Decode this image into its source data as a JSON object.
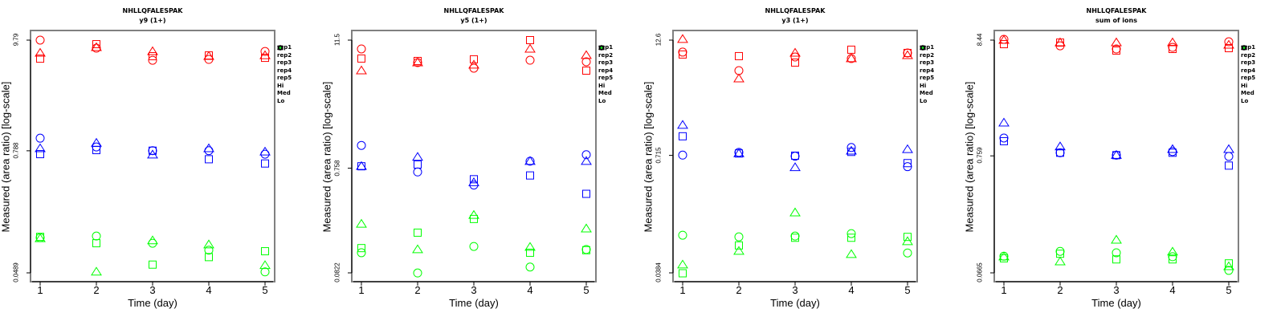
{
  "chart_data": [
    {
      "type": "scatter",
      "title": "NHLLQFALESPAK",
      "subtitle": "y9 (1+)",
      "xlabel": "Time (day)",
      "ylabel": "Measured (area ratio) [log-scale]",
      "yscale": "log",
      "x_ticks": [
        "1",
        "2",
        "3",
        "4",
        "5"
      ],
      "xlim": [
        1,
        5
      ],
      "y_ticks": [
        "0.0489",
        "0.788",
        "9.79"
      ],
      "y_tick_values": [
        0.0489,
        0.788,
        9.79
      ],
      "ylim": [
        0.0489,
        9.79
      ],
      "legend": [
        "rep1",
        "rep2",
        "rep3",
        "rep4",
        "rep5",
        "Hi",
        "Med",
        "Lo"
      ],
      "legend_position": "right",
      "series": [
        {
          "name": "Hi rep1",
          "group": "Hi",
          "rep": "rep1",
          "x": [
            1,
            2,
            3,
            4,
            5
          ],
          "values": [
            9.79,
            8.15,
            6.19,
            6.31,
            7.57
          ]
        },
        {
          "name": "Hi rep2",
          "group": "Hi",
          "rep": "rep2",
          "x": [
            1,
            2,
            3,
            4,
            5
          ],
          "values": [
            6.42,
            8.93,
            6.79,
            6.91,
            6.54
          ]
        },
        {
          "name": "Hi rep3",
          "group": "Hi",
          "rep": "rep3",
          "x": [
            1,
            2,
            3,
            4,
            5
          ],
          "values": [
            7.3,
            8.3,
            7.57,
            6.79,
            6.91
          ]
        },
        {
          "name": "Med rep1",
          "group": "Med",
          "rep": "rep1",
          "x": [
            1,
            2,
            3,
            4,
            5
          ],
          "values": [
            1.05,
            0.86,
            0.79,
            0.79,
            0.73
          ]
        },
        {
          "name": "Med rep2",
          "group": "Med",
          "rep": "rep2",
          "x": [
            1,
            2,
            3,
            4,
            5
          ],
          "values": [
            0.73,
            0.8,
            0.79,
            0.65,
            0.59
          ]
        },
        {
          "name": "Med rep3",
          "group": "Med",
          "rep": "rep3",
          "x": [
            1,
            2,
            3,
            4,
            5
          ],
          "values": [
            0.83,
            0.94,
            0.72,
            0.83,
            0.77
          ]
        },
        {
          "name": "Lo rep1",
          "group": "Lo",
          "rep": "rep1",
          "x": [
            1,
            2,
            3,
            4,
            5
          ],
          "values": [
            0.109,
            0.113,
            0.096,
            0.082,
            0.05
          ]
        },
        {
          "name": "Lo rep2",
          "group": "Lo",
          "rep": "rep2",
          "x": [
            1,
            2,
            3,
            4,
            5
          ],
          "values": [
            0.111,
            0.096,
            0.059,
            0.07,
            0.08
          ]
        },
        {
          "name": "Lo rep3",
          "group": "Lo",
          "rep": "rep3",
          "x": [
            1,
            2,
            3,
            4,
            5
          ],
          "values": [
            0.107,
            0.05,
            0.102,
            0.093,
            0.058
          ]
        }
      ]
    },
    {
      "type": "scatter",
      "title": "NHLLQFALESPAK",
      "subtitle": "y5 (1+)",
      "xlabel": "Time (day)",
      "ylabel": "Measured (area ratio) [log-scale]",
      "yscale": "log",
      "x_ticks": [
        "1",
        "2",
        "3",
        "4",
        "5"
      ],
      "xlim": [
        1,
        5
      ],
      "y_ticks": [
        "0.0822",
        "0.758",
        "11.5"
      ],
      "y_tick_values": [
        0.0822,
        0.758,
        11.5
      ],
      "ylim": [
        0.0822,
        11.5
      ],
      "legend": [
        "rep1",
        "rep2",
        "rep3",
        "rep4",
        "rep5",
        "Hi",
        "Med",
        "Lo"
      ],
      "legend_position": "right",
      "series": [
        {
          "name": "Hi rep1",
          "group": "Hi",
          "rep": "rep1",
          "x": [
            1,
            2,
            3,
            4,
            5
          ],
          "values": [
            9.54,
            7.14,
            6.34,
            7.51,
            7.26
          ]
        },
        {
          "name": "Hi rep2",
          "group": "Hi",
          "rep": "rep2",
          "x": [
            1,
            2,
            3,
            4,
            5
          ],
          "values": [
            7.78,
            7.39,
            7.65,
            11.5,
            6.02
          ]
        },
        {
          "name": "Hi rep3",
          "group": "Hi",
          "rep": "rep3",
          "x": [
            1,
            2,
            3,
            4,
            5
          ],
          "values": [
            6.02,
            7.14,
            6.8,
            9.54,
            8.33
          ]
        },
        {
          "name": "Med rep1",
          "group": "Med",
          "rep": "rep1",
          "x": [
            1,
            2,
            3,
            4,
            5
          ],
          "values": [
            1.23,
            0.7,
            0.53,
            0.88,
            1.01
          ]
        },
        {
          "name": "Med rep2",
          "group": "Med",
          "rep": "rep2",
          "x": [
            1,
            2,
            3,
            4,
            5
          ],
          "values": [
            0.79,
            0.82,
            0.6,
            0.65,
            0.44
          ]
        },
        {
          "name": "Med rep3",
          "group": "Med",
          "rep": "rep3",
          "x": [
            1,
            2,
            3,
            4,
            5
          ],
          "values": [
            0.79,
            0.96,
            0.56,
            0.88,
            0.88
          ]
        },
        {
          "name": "Lo rep1",
          "group": "Lo",
          "rep": "rep1",
          "x": [
            1,
            2,
            3,
            4,
            5
          ],
          "values": [
            0.126,
            0.082,
            0.144,
            0.093,
            0.135
          ]
        },
        {
          "name": "Lo rep2",
          "group": "Lo",
          "rep": "rep2",
          "x": [
            1,
            2,
            3,
            4,
            5
          ],
          "values": [
            0.139,
            0.193,
            0.258,
            0.126,
            0.133
          ]
        },
        {
          "name": "Lo rep3",
          "group": "Lo",
          "rep": "rep3",
          "x": [
            1,
            2,
            3,
            4,
            5
          ],
          "values": [
            0.232,
            0.135,
            0.28,
            0.142,
            0.21
          ]
        }
      ]
    },
    {
      "type": "scatter",
      "title": "NHLLQFALESPAK",
      "subtitle": "y3 (1+)",
      "xlabel": "Time (day)",
      "ylabel": "Measured (area ratio) [log-scale]",
      "yscale": "log",
      "x_ticks": [
        "1",
        "2",
        "3",
        "4",
        "5"
      ],
      "xlim": [
        1,
        5
      ],
      "y_ticks": [
        "0.0384",
        "0.715",
        "12.6"
      ],
      "y_tick_values": [
        0.0384,
        0.715,
        12.6
      ],
      "ylim": [
        0.0384,
        12.6
      ],
      "legend": [
        "rep1",
        "rep2",
        "rep3",
        "rep4",
        "rep5",
        "Hi",
        "Med",
        "Lo"
      ],
      "legend_position": "right",
      "series": [
        {
          "name": "Hi rep1",
          "group": "Hi",
          "rep": "rep1",
          "x": [
            1,
            2,
            3,
            4,
            5
          ],
          "values": [
            9.35,
            5.9,
            8.29,
            7.97,
            9.16
          ]
        },
        {
          "name": "Hi rep2",
          "group": "Hi",
          "rep": "rep2",
          "x": [
            1,
            2,
            3,
            4,
            5
          ],
          "values": [
            8.81,
            8.46,
            7.21,
            9.93,
            9.16
          ]
        },
        {
          "name": "Hi rep3",
          "group": "Hi",
          "rep": "rep3",
          "x": [
            1,
            2,
            3,
            4,
            5
          ],
          "values": [
            12.9,
            4.83,
            9.16,
            7.97,
            8.63
          ]
        },
        {
          "name": "Med rep1",
          "group": "Med",
          "rep": "rep1",
          "x": [
            1,
            2,
            3,
            4,
            5
          ],
          "values": [
            0.72,
            0.77,
            0.7,
            0.87,
            0.54
          ]
        },
        {
          "name": "Med rep2",
          "group": "Med",
          "rep": "rep2",
          "x": [
            1,
            2,
            3,
            4,
            5
          ],
          "values": [
            1.15,
            0.75,
            0.71,
            0.78,
            0.59
          ]
        },
        {
          "name": "Med rep3",
          "group": "Med",
          "rep": "rep3",
          "x": [
            1,
            2,
            3,
            4,
            5
          ],
          "values": [
            1.52,
            0.75,
            0.53,
            0.8,
            0.83
          ]
        },
        {
          "name": "Lo rep1",
          "group": "Lo",
          "rep": "rep1",
          "x": [
            1,
            2,
            3,
            4,
            5
          ],
          "values": [
            0.098,
            0.094,
            0.096,
            0.102,
            0.063
          ]
        },
        {
          "name": "Lo rep2",
          "group": "Lo",
          "rep": "rep2",
          "x": [
            1,
            2,
            3,
            4,
            5
          ],
          "values": [
            0.038,
            0.076,
            0.092,
            0.092,
            0.094
          ]
        },
        {
          "name": "Lo rep3",
          "group": "Lo",
          "rep": "rep3",
          "x": [
            1,
            2,
            3,
            4,
            5
          ],
          "values": [
            0.047,
            0.066,
            0.172,
            0.061,
            0.084
          ]
        }
      ]
    },
    {
      "type": "scatter",
      "title": "NHLLQFALESPAK",
      "subtitle": "sum of ions",
      "xlabel": "Time (day)",
      "ylabel": "Measured (area ratio) [log-scale]",
      "yscale": "log",
      "x_ticks": [
        "1",
        "2",
        "3",
        "4",
        "5"
      ],
      "xlim": [
        1,
        5
      ],
      "y_ticks": [
        "0.0665",
        "0.759",
        "8.44"
      ],
      "y_tick_values": [
        0.0665,
        0.759,
        8.44
      ],
      "ylim": [
        0.0665,
        8.44
      ],
      "legend": [
        "rep1",
        "rep2",
        "rep3",
        "rep4",
        "rep5",
        "Hi",
        "Med",
        "Lo"
      ],
      "legend_position": "right",
      "series": [
        {
          "name": "Hi rep1",
          "group": "Hi",
          "rep": "rep1",
          "x": [
            1,
            2,
            3,
            4,
            5
          ],
          "values": [
            8.58,
            7.5,
            7.02,
            7.26,
            8.16
          ]
        },
        {
          "name": "Hi rep2",
          "group": "Hi",
          "rep": "rep2",
          "x": [
            1,
            2,
            3,
            4,
            5
          ],
          "values": [
            7.76,
            8.02,
            6.79,
            7.02,
            7.14
          ]
        },
        {
          "name": "Hi rep3",
          "group": "Hi",
          "rep": "rep3",
          "x": [
            1,
            2,
            3,
            4,
            5
          ],
          "values": [
            8.44,
            8.02,
            8.02,
            8.02,
            7.63
          ]
        },
        {
          "name": "Med rep1",
          "group": "Med",
          "rep": "rep1",
          "x": [
            1,
            2,
            3,
            4,
            5
          ],
          "values": [
            1.1,
            0.81,
            0.77,
            0.83,
            0.75
          ]
        },
        {
          "name": "Med rep2",
          "group": "Med",
          "rep": "rep2",
          "x": [
            1,
            2,
            3,
            4,
            5
          ],
          "values": [
            1.03,
            0.81,
            0.77,
            0.81,
            0.62
          ]
        },
        {
          "name": "Med rep3",
          "group": "Med",
          "rep": "rep3",
          "x": [
            1,
            2,
            3,
            4,
            5
          ],
          "values": [
            1.51,
            0.92,
            0.77,
            0.87,
            0.87
          ]
        },
        {
          "name": "Lo rep1",
          "group": "Lo",
          "rep": "rep1",
          "x": [
            1,
            2,
            3,
            4,
            5
          ],
          "values": [
            0.094,
            0.104,
            0.101,
            0.093,
            0.07
          ]
        },
        {
          "name": "Lo rep2",
          "group": "Lo",
          "rep": "rep2",
          "x": [
            1,
            2,
            3,
            4,
            5
          ],
          "values": [
            0.09,
            0.099,
            0.088,
            0.088,
            0.081
          ]
        },
        {
          "name": "Lo rep3",
          "group": "Lo",
          "rep": "rep3",
          "x": [
            1,
            2,
            3,
            4,
            5
          ],
          "values": [
            0.093,
            0.084,
            0.132,
            0.103,
            0.076
          ]
        }
      ]
    }
  ],
  "colors": {
    "Hi": "#ff0000",
    "Med": "#0000ff",
    "Lo": "#00ff00",
    "axis": "#000000",
    "frame": "#808080"
  },
  "legend_symbols": {
    "rep1": "circle",
    "rep2": "square",
    "rep3": "triangle-up",
    "rep4": "diamond",
    "rep5": "triangle-down",
    "Hi": "dot",
    "Med": "dot",
    "Lo": "dot"
  }
}
